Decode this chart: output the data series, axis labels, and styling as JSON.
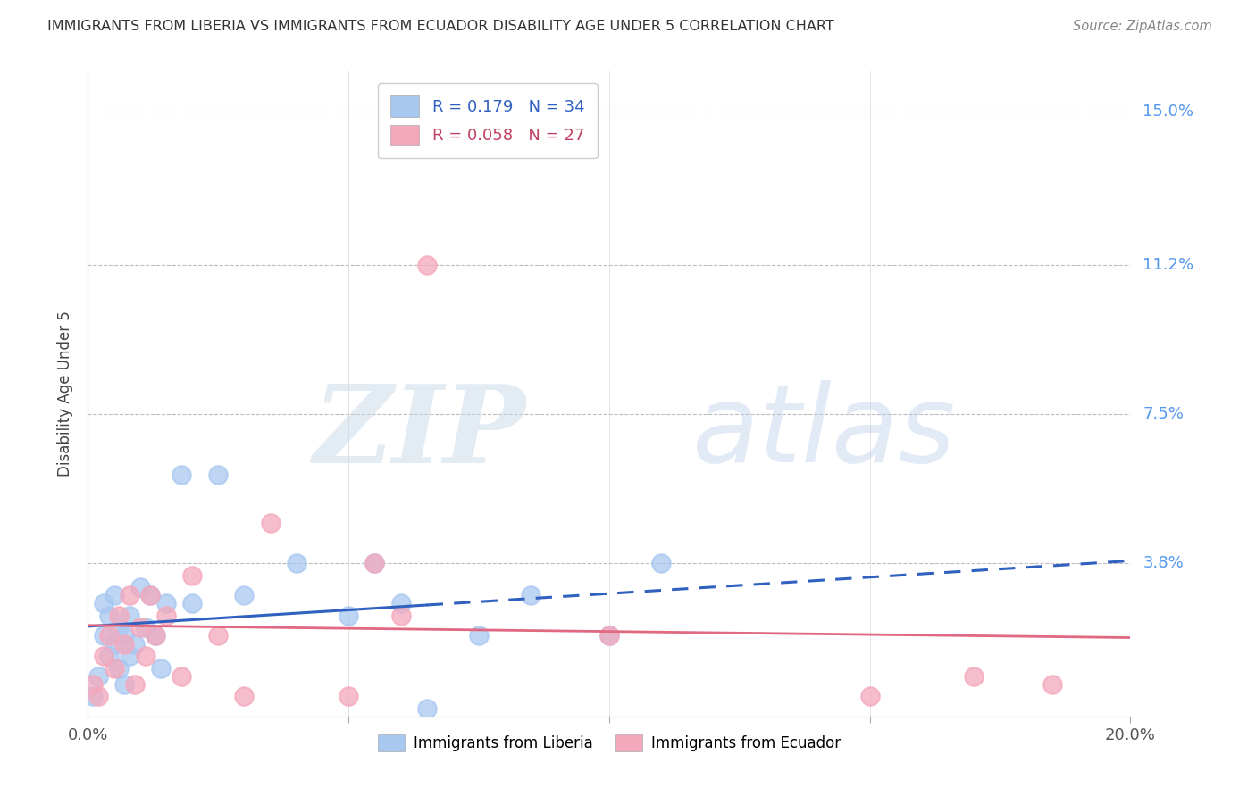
{
  "title": "IMMIGRANTS FROM LIBERIA VS IMMIGRANTS FROM ECUADOR DISABILITY AGE UNDER 5 CORRELATION CHART",
  "source": "Source: ZipAtlas.com",
  "ylabel": "Disability Age Under 5",
  "xlim": [
    0.0,
    0.2
  ],
  "ylim": [
    0.0,
    0.16
  ],
  "liberia_R": 0.179,
  "liberia_N": 34,
  "ecuador_R": 0.058,
  "ecuador_N": 27,
  "liberia_color": "#a8c8f0",
  "ecuador_color": "#f4a8bc",
  "liberia_line_color": "#3060c0",
  "ecuador_line_color": "#e06880",
  "background_color": "#ffffff",
  "grid_color": "#bbbbbb",
  "watermark_zip": "ZIP",
  "watermark_atlas": "atlas",
  "ytick_positions": [
    0.038,
    0.075,
    0.112,
    0.15
  ],
  "ytick_labels": [
    "3.8%",
    "7.5%",
    "11.2%",
    "15.0%"
  ],
  "liberia_x": [
    0.001,
    0.002,
    0.003,
    0.003,
    0.004,
    0.004,
    0.005,
    0.005,
    0.006,
    0.006,
    0.007,
    0.007,
    0.008,
    0.008,
    0.009,
    0.01,
    0.011,
    0.012,
    0.013,
    0.014,
    0.015,
    0.018,
    0.02,
    0.025,
    0.03,
    0.04,
    0.05,
    0.055,
    0.06,
    0.065,
    0.075,
    0.085,
    0.1,
    0.11
  ],
  "liberia_y": [
    0.005,
    0.01,
    0.02,
    0.028,
    0.015,
    0.025,
    0.018,
    0.03,
    0.022,
    0.012,
    0.008,
    0.02,
    0.025,
    0.015,
    0.018,
    0.032,
    0.022,
    0.03,
    0.02,
    0.012,
    0.028,
    0.06,
    0.028,
    0.06,
    0.03,
    0.038,
    0.025,
    0.038,
    0.028,
    0.002,
    0.02,
    0.03,
    0.02,
    0.038
  ],
  "ecuador_x": [
    0.001,
    0.002,
    0.003,
    0.004,
    0.005,
    0.006,
    0.007,
    0.008,
    0.009,
    0.01,
    0.011,
    0.012,
    0.013,
    0.015,
    0.018,
    0.02,
    0.025,
    0.03,
    0.035,
    0.05,
    0.055,
    0.06,
    0.065,
    0.1,
    0.15,
    0.17,
    0.185
  ],
  "ecuador_y": [
    0.008,
    0.005,
    0.015,
    0.02,
    0.012,
    0.025,
    0.018,
    0.03,
    0.008,
    0.022,
    0.015,
    0.03,
    0.02,
    0.025,
    0.01,
    0.035,
    0.02,
    0.005,
    0.048,
    0.005,
    0.038,
    0.025,
    0.112,
    0.02,
    0.005,
    0.01,
    0.008
  ],
  "liberia_line_x_solid_end": 0.065,
  "liberia_line_slope": 0.135,
  "liberia_line_intercept": 0.018,
  "ecuador_line_slope": 0.055,
  "ecuador_line_intercept": 0.016
}
